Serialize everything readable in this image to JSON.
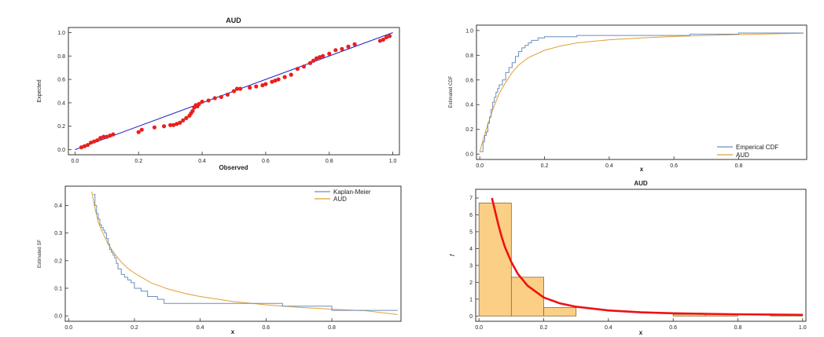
{
  "chart_data": [
    {
      "id": "pp",
      "type": "scatter",
      "title": "AUD",
      "xlabel": "Observed",
      "ylabel": "Expected",
      "xlim": [
        0,
        1
      ],
      "ylim": [
        0,
        1
      ],
      "xticks": [
        "0.0",
        "0.2",
        "0.4",
        "0.6",
        "0.8",
        "1.0"
      ],
      "yticks": [
        "0.0",
        "0.2",
        "0.4",
        "0.6",
        "0.8",
        "1.0"
      ],
      "colors": {
        "points": "#e8201c",
        "line": "#1f1fbf"
      },
      "series": [
        {
          "name": "points",
          "x": [
            0.02,
            0.03,
            0.04,
            0.05,
            0.06,
            0.07,
            0.08,
            0.09,
            0.1,
            0.11,
            0.12,
            0.2,
            0.21,
            0.25,
            0.28,
            0.3,
            0.31,
            0.32,
            0.33,
            0.34,
            0.35,
            0.36,
            0.365,
            0.37,
            0.375,
            0.38,
            0.385,
            0.39,
            0.4,
            0.42,
            0.44,
            0.46,
            0.48,
            0.5,
            0.51,
            0.52,
            0.55,
            0.57,
            0.59,
            0.6,
            0.62,
            0.63,
            0.64,
            0.66,
            0.68,
            0.7,
            0.72,
            0.74,
            0.75,
            0.76,
            0.77,
            0.78,
            0.8,
            0.82,
            0.84,
            0.86,
            0.88,
            0.96,
            0.97,
            0.98,
            0.99
          ],
          "y": [
            0.02,
            0.03,
            0.04,
            0.06,
            0.07,
            0.08,
            0.1,
            0.11,
            0.11,
            0.12,
            0.13,
            0.15,
            0.17,
            0.19,
            0.2,
            0.21,
            0.21,
            0.22,
            0.23,
            0.25,
            0.27,
            0.29,
            0.31,
            0.33,
            0.36,
            0.38,
            0.37,
            0.39,
            0.41,
            0.42,
            0.44,
            0.45,
            0.47,
            0.5,
            0.52,
            0.52,
            0.53,
            0.54,
            0.55,
            0.56,
            0.58,
            0.59,
            0.6,
            0.62,
            0.64,
            0.69,
            0.71,
            0.74,
            0.76,
            0.78,
            0.79,
            0.8,
            0.82,
            0.85,
            0.86,
            0.88,
            0.9,
            0.93,
            0.94,
            0.96,
            0.97
          ]
        },
        {
          "name": "reference",
          "x": [
            0,
            1
          ],
          "y": [
            0,
            1
          ]
        }
      ]
    },
    {
      "id": "cdf",
      "type": "line",
      "title": "",
      "xlabel": "x",
      "ylabel": "Estimated CDF",
      "xlim": [
        0,
        1
      ],
      "ylim": [
        0,
        1
      ],
      "xticks": [
        "0.0",
        "0.2",
        "0.4",
        "0.6",
        "0.8"
      ],
      "yticks": [
        "0.0",
        "0.2",
        "0.4",
        "0.6",
        "0.8",
        "1.0"
      ],
      "legend": {
        "position": "bottom-right",
        "entries": [
          "Emperical CDF",
          "AUD"
        ]
      },
      "colors": {
        "empirical": "#6c8ebf",
        "model": "#e0a030"
      },
      "series": [
        {
          "name": "Emperical CDF",
          "x": [
            0.0,
            0.01,
            0.015,
            0.02,
            0.025,
            0.03,
            0.035,
            0.04,
            0.045,
            0.05,
            0.055,
            0.06,
            0.07,
            0.08,
            0.09,
            0.1,
            0.11,
            0.12,
            0.13,
            0.14,
            0.15,
            0.16,
            0.18,
            0.2,
            0.3,
            0.65,
            0.8,
            1.0
          ],
          "y": [
            0.02,
            0.1,
            0.15,
            0.18,
            0.25,
            0.3,
            0.36,
            0.42,
            0.46,
            0.5,
            0.53,
            0.56,
            0.6,
            0.66,
            0.7,
            0.74,
            0.79,
            0.83,
            0.86,
            0.88,
            0.9,
            0.92,
            0.94,
            0.95,
            0.96,
            0.97,
            0.98,
            0.98
          ]
        },
        {
          "name": "AUD",
          "x": [
            0.0,
            0.02,
            0.04,
            0.06,
            0.08,
            0.1,
            0.12,
            0.15,
            0.2,
            0.25,
            0.3,
            0.4,
            0.5,
            0.6,
            0.7,
            0.8,
            0.9,
            1.0
          ],
          "y": [
            0.02,
            0.2,
            0.36,
            0.49,
            0.58,
            0.66,
            0.72,
            0.78,
            0.84,
            0.875,
            0.9,
            0.925,
            0.94,
            0.952,
            0.96,
            0.967,
            0.973,
            0.978
          ]
        }
      ]
    },
    {
      "id": "sf",
      "type": "line",
      "title": "",
      "xlabel": "x",
      "ylabel": "Estimated SF",
      "xlim": [
        0,
        1
      ],
      "ylim": [
        0,
        0.45
      ],
      "xticks": [
        "0.0",
        "0.2",
        "0.4",
        "0.6",
        "0.8"
      ],
      "yticks": [
        "0.0",
        "0.1",
        "0.2",
        "0.3",
        "0.4"
      ],
      "legend": {
        "position": "top-right",
        "entries": [
          "Kaplan-Meier",
          "AUD"
        ]
      },
      "colors": {
        "km": "#6c8ebf",
        "model": "#e0a030"
      },
      "series": [
        {
          "name": "Kaplan-Meier",
          "x": [
            0.075,
            0.08,
            0.085,
            0.09,
            0.095,
            0.1,
            0.105,
            0.11,
            0.115,
            0.12,
            0.125,
            0.13,
            0.135,
            0.14,
            0.145,
            0.15,
            0.16,
            0.17,
            0.18,
            0.19,
            0.2,
            0.22,
            0.24,
            0.25,
            0.27,
            0.29,
            0.65,
            0.8,
            1.0
          ],
          "y": [
            0.44,
            0.4,
            0.37,
            0.35,
            0.33,
            0.32,
            0.31,
            0.3,
            0.28,
            0.26,
            0.24,
            0.23,
            0.22,
            0.21,
            0.19,
            0.17,
            0.15,
            0.14,
            0.13,
            0.12,
            0.1,
            0.09,
            0.07,
            0.07,
            0.06,
            0.045,
            0.035,
            0.02,
            0.02
          ]
        },
        {
          "name": "AUD",
          "x": [
            0.07,
            0.08,
            0.09,
            0.1,
            0.12,
            0.14,
            0.16,
            0.18,
            0.2,
            0.25,
            0.3,
            0.35,
            0.4,
            0.5,
            0.6,
            0.7,
            0.8,
            0.9,
            1.0
          ],
          "y": [
            0.45,
            0.39,
            0.34,
            0.31,
            0.26,
            0.225,
            0.195,
            0.172,
            0.155,
            0.12,
            0.098,
            0.082,
            0.07,
            0.052,
            0.04,
            0.031,
            0.024,
            0.019,
            0.005
          ]
        }
      ]
    },
    {
      "id": "hist",
      "type": "bar",
      "title": "AUD",
      "xlabel": "x",
      "ylabel": "f",
      "xlim": [
        0,
        1
      ],
      "ylim": [
        0,
        7.2
      ],
      "xticks": [
        "0.0",
        "0.2",
        "0.4",
        "0.6",
        "0.8",
        "1.0"
      ],
      "yticks": [
        "0",
        "1",
        "2",
        "3",
        "4",
        "5",
        "6",
        "7"
      ],
      "colors": {
        "bars": "#fbcf85",
        "barEdge": "#8a6a30",
        "curve": "#ee1111"
      },
      "bins": [
        {
          "x0": 0.0,
          "x1": 0.1,
          "value": 6.7
        },
        {
          "x0": 0.1,
          "x1": 0.2,
          "value": 2.3
        },
        {
          "x0": 0.2,
          "x1": 0.3,
          "value": 0.5
        },
        {
          "x0": 0.6,
          "x1": 0.7,
          "value": 0.1
        },
        {
          "x0": 0.7,
          "x1": 0.8,
          "value": 0.1
        },
        {
          "x0": 0.9,
          "x1": 1.0,
          "value": 0.1
        }
      ],
      "series": [
        {
          "name": "AUD density",
          "x": [
            0.04,
            0.05,
            0.06,
            0.07,
            0.08,
            0.1,
            0.12,
            0.15,
            0.2,
            0.25,
            0.3,
            0.4,
            0.5,
            0.6,
            0.7,
            0.8,
            0.9,
            1.0
          ],
          "y": [
            7.0,
            6.2,
            5.4,
            4.7,
            4.1,
            3.2,
            2.5,
            1.8,
            1.1,
            0.75,
            0.55,
            0.33,
            0.22,
            0.16,
            0.13,
            0.1,
            0.085,
            0.07
          ]
        }
      ]
    }
  ]
}
